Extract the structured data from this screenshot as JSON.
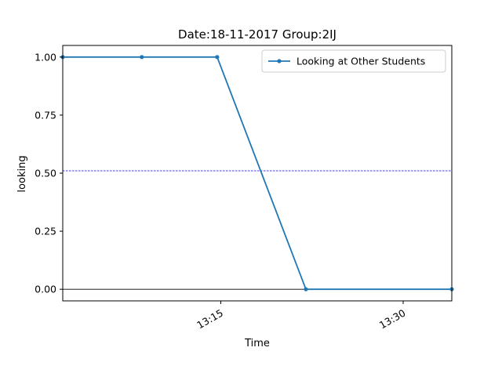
{
  "colors": {
    "series": "#1f77b4",
    "threshold": "#0000cc",
    "zero_line": "#000000",
    "axes": "#000000",
    "legend_border": "#cccccc",
    "background": "#ffffff"
  },
  "chart_data": {
    "type": "line",
    "title": "Date:18-11-2017  Group:2IJ",
    "xlabel": "Time",
    "ylabel": "looking",
    "xlim": [
      "13:02",
      "13:34"
    ],
    "ylim": [
      -0.05,
      1.05
    ],
    "x_is_time": true,
    "x_ticks": [
      "13:15",
      "13:30"
    ],
    "y_ticks": [
      "0.00",
      "0.25",
      "0.50",
      "0.75",
      "1.00"
    ],
    "legend_position": "top-right",
    "grid": false,
    "series": [
      {
        "name": "Looking at Other Students",
        "x": [
          "13:02",
          "13:08.5",
          "13:14.7",
          "13:22",
          "13:34"
        ],
        "values": [
          1.0,
          1.0,
          1.0,
          0.0,
          0.0
        ],
        "marker": "dot"
      }
    ],
    "reference_lines": [
      {
        "y": 0.51,
        "style": "dashed"
      },
      {
        "y": 0.0,
        "style": "solid"
      }
    ]
  }
}
